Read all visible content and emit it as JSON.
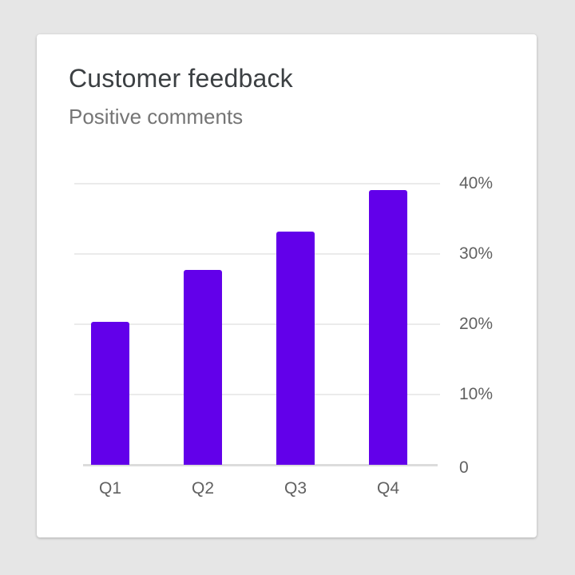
{
  "card": {
    "title": "Customer feedback",
    "subtitle": "Positive comments"
  },
  "colors": {
    "bar": "#6200ea",
    "background": "#e6e6e6",
    "card": "#ffffff",
    "gridline": "#ebebeb"
  },
  "chart_data": {
    "type": "bar",
    "title": "Customer feedback",
    "subtitle": "Positive comments",
    "categories": [
      "Q1",
      "Q2",
      "Q3",
      "Q4"
    ],
    "values": [
      20.3,
      27.7,
      33.2,
      39.1
    ],
    "unit": "%",
    "xlabel": "",
    "ylabel": "",
    "ylim": [
      0,
      40
    ],
    "yticks": [
      "0",
      "10%",
      "20%",
      "30%",
      "40%"
    ],
    "y_axis_position": "right",
    "grid": true,
    "legend": null
  }
}
